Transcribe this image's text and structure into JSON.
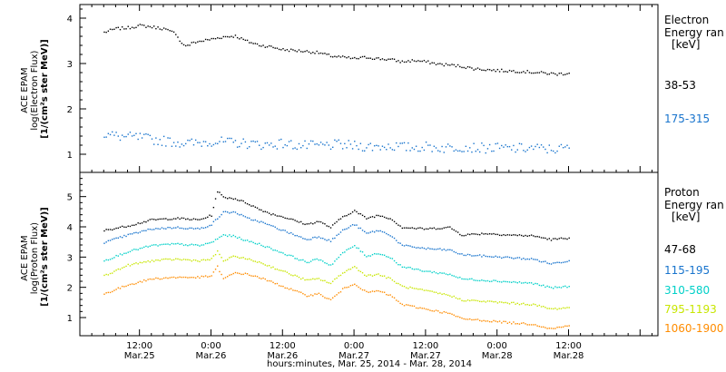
{
  "chart_data": [
    {
      "type": "scatter",
      "panel": "electron",
      "ylabel_lines": [
        "ACE EPAM",
        "log(Electron Flux)",
        "[1/(cm²s ster MeV)]"
      ],
      "legend_title": "Electron",
      "legend_subtitle": "Energy ran",
      "legend_units": "[keV]",
      "ylim": [
        0.6,
        4.3
      ],
      "yticks": [
        "1",
        "2",
        "3",
        "4"
      ],
      "series": [
        {
          "name": "38-53",
          "color": "#000000",
          "points": [
            [
              0.0,
              3.7
            ],
            [
              2.0,
              3.78
            ],
            [
              4.0,
              3.8
            ],
            [
              6.0,
              3.85
            ],
            [
              8.0,
              3.82
            ],
            [
              10.0,
              3.78
            ],
            [
              11.0,
              3.72
            ],
            [
              12.0,
              3.68
            ],
            [
              13.0,
              3.45
            ],
            [
              14.0,
              3.4
            ],
            [
              15.0,
              3.48
            ],
            [
              16.0,
              3.5
            ],
            [
              18.0,
              3.55
            ],
            [
              20.0,
              3.6
            ],
            [
              22.0,
              3.62
            ],
            [
              24.0,
              3.5
            ],
            [
              26.0,
              3.42
            ],
            [
              28.0,
              3.38
            ],
            [
              30.0,
              3.32
            ],
            [
              32.0,
              3.3
            ],
            [
              34.0,
              3.28
            ],
            [
              36.0,
              3.25
            ],
            [
              38.0,
              3.18
            ],
            [
              40.0,
              3.15
            ],
            [
              42.0,
              3.12
            ],
            [
              44.0,
              3.15
            ],
            [
              46.0,
              3.12
            ],
            [
              48.0,
              3.1
            ],
            [
              50.0,
              3.05
            ],
            [
              52.0,
              3.08
            ],
            [
              54.0,
              3.05
            ],
            [
              56.0,
              3.0
            ],
            [
              58.0,
              2.98
            ],
            [
              60.0,
              2.95
            ],
            [
              62.0,
              2.9
            ],
            [
              64.0,
              2.88
            ],
            [
              66.0,
              2.86
            ],
            [
              68.0,
              2.85
            ],
            [
              70.0,
              2.84
            ],
            [
              72.0,
              2.82
            ],
            [
              74.0,
              2.8
            ],
            [
              76.0,
              2.78
            ],
            [
              78.0,
              2.8
            ]
          ]
        },
        {
          "name": "175-315",
          "color": "#1874cd",
          "points": [
            [
              0.0,
              1.45
            ],
            [
              3.0,
              1.4
            ],
            [
              6.0,
              1.38
            ],
            [
              9.0,
              1.32
            ],
            [
              12.0,
              1.28
            ],
            [
              15.0,
              1.25
            ],
            [
              18.0,
              1.3
            ],
            [
              21.0,
              1.27
            ],
            [
              24.0,
              1.25
            ],
            [
              27.0,
              1.22
            ],
            [
              30.0,
              1.25
            ],
            [
              33.0,
              1.2
            ],
            [
              36.0,
              1.2
            ],
            [
              39.0,
              1.22
            ],
            [
              42.0,
              1.2
            ],
            [
              45.0,
              1.18
            ],
            [
              48.0,
              1.2
            ],
            [
              51.0,
              1.16
            ],
            [
              54.0,
              1.18
            ],
            [
              57.0,
              1.15
            ],
            [
              60.0,
              1.18
            ],
            [
              63.0,
              1.15
            ],
            [
              66.0,
              1.15
            ],
            [
              69.0,
              1.14
            ],
            [
              72.0,
              1.15
            ],
            [
              75.0,
              1.12
            ],
            [
              78.0,
              1.15
            ]
          ]
        }
      ]
    },
    {
      "type": "scatter",
      "panel": "proton",
      "ylabel_lines": [
        "ACE EPAM",
        "log(Proton Flux)",
        "[1/(cm²s ster MeV)]"
      ],
      "legend_title": "Proton",
      "legend_subtitle": "Energy ran",
      "legend_units": "[keV]",
      "ylim": [
        0.4,
        5.8
      ],
      "yticks": [
        "1",
        "2",
        "3",
        "4",
        "5"
      ],
      "series": [
        {
          "name": "47-68",
          "color": "#000000",
          "points": [
            [
              0,
              3.9
            ],
            [
              4,
              4.05
            ],
            [
              8,
              4.25
            ],
            [
              12,
              4.3
            ],
            [
              16,
              4.25
            ],
            [
              18,
              4.4
            ],
            [
              19,
              5.2
            ],
            [
              20,
              5.0
            ],
            [
              22,
              4.95
            ],
            [
              24,
              4.8
            ],
            [
              26,
              4.6
            ],
            [
              28,
              4.45
            ],
            [
              30,
              4.35
            ],
            [
              34,
              4.1
            ],
            [
              36,
              4.2
            ],
            [
              38,
              4.0
            ],
            [
              40,
              4.35
            ],
            [
              42,
              4.55
            ],
            [
              44,
              4.3
            ],
            [
              46,
              4.4
            ],
            [
              48,
              4.3
            ],
            [
              50,
              4.0
            ],
            [
              54,
              3.95
            ],
            [
              58,
              4.0
            ],
            [
              60,
              3.75
            ],
            [
              64,
              3.8
            ],
            [
              68,
              3.75
            ],
            [
              72,
              3.72
            ],
            [
              75,
              3.6
            ],
            [
              78,
              3.65
            ]
          ]
        },
        {
          "name": "115-195",
          "color": "#1874cd",
          "points": [
            [
              0,
              3.5
            ],
            [
              4,
              3.75
            ],
            [
              8,
              3.95
            ],
            [
              12,
              4.0
            ],
            [
              16,
              3.95
            ],
            [
              18,
              4.1
            ],
            [
              20,
              4.5
            ],
            [
              22,
              4.5
            ],
            [
              24,
              4.3
            ],
            [
              26,
              4.2
            ],
            [
              28,
              4.05
            ],
            [
              30,
              3.9
            ],
            [
              34,
              3.6
            ],
            [
              36,
              3.7
            ],
            [
              38,
              3.55
            ],
            [
              40,
              3.9
            ],
            [
              42,
              4.1
            ],
            [
              44,
              3.8
            ],
            [
              46,
              3.9
            ],
            [
              48,
              3.75
            ],
            [
              50,
              3.4
            ],
            [
              54,
              3.3
            ],
            [
              58,
              3.25
            ],
            [
              60,
              3.1
            ],
            [
              64,
              3.05
            ],
            [
              68,
              3.0
            ],
            [
              72,
              2.95
            ],
            [
              75,
              2.8
            ],
            [
              78,
              2.9
            ]
          ]
        },
        {
          "name": "310-580",
          "color": "#00d0c8",
          "points": [
            [
              0,
              2.9
            ],
            [
              4,
              3.2
            ],
            [
              8,
              3.4
            ],
            [
              12,
              3.45
            ],
            [
              16,
              3.4
            ],
            [
              18,
              3.5
            ],
            [
              20,
              3.75
            ],
            [
              22,
              3.7
            ],
            [
              24,
              3.55
            ],
            [
              26,
              3.45
            ],
            [
              28,
              3.3
            ],
            [
              30,
              3.15
            ],
            [
              34,
              2.85
            ],
            [
              36,
              2.95
            ],
            [
              38,
              2.75
            ],
            [
              40,
              3.15
            ],
            [
              42,
              3.4
            ],
            [
              44,
              3.05
            ],
            [
              46,
              3.15
            ],
            [
              48,
              3.0
            ],
            [
              50,
              2.7
            ],
            [
              54,
              2.55
            ],
            [
              58,
              2.45
            ],
            [
              60,
              2.3
            ],
            [
              64,
              2.25
            ],
            [
              68,
              2.2
            ],
            [
              72,
              2.15
            ],
            [
              75,
              2.0
            ],
            [
              78,
              2.05
            ]
          ]
        },
        {
          "name": "795-1193",
          "color": "#c8e600",
          "points": [
            [
              0,
              2.4
            ],
            [
              4,
              2.75
            ],
            [
              8,
              2.9
            ],
            [
              12,
              2.95
            ],
            [
              16,
              2.9
            ],
            [
              18,
              2.95
            ],
            [
              19,
              3.2
            ],
            [
              20,
              2.9
            ],
            [
              22,
              3.05
            ],
            [
              24,
              2.95
            ],
            [
              26,
              2.85
            ],
            [
              28,
              2.7
            ],
            [
              30,
              2.55
            ],
            [
              34,
              2.25
            ],
            [
              36,
              2.3
            ],
            [
              38,
              2.15
            ],
            [
              40,
              2.5
            ],
            [
              42,
              2.7
            ],
            [
              44,
              2.4
            ],
            [
              46,
              2.45
            ],
            [
              48,
              2.3
            ],
            [
              50,
              2.05
            ],
            [
              54,
              1.9
            ],
            [
              58,
              1.75
            ],
            [
              60,
              1.6
            ],
            [
              64,
              1.55
            ],
            [
              68,
              1.5
            ],
            [
              72,
              1.45
            ],
            [
              75,
              1.3
            ],
            [
              78,
              1.35
            ]
          ]
        },
        {
          "name": "1060-1900",
          "color": "#ff8c00",
          "points": [
            [
              0,
              1.8
            ],
            [
              4,
              2.1
            ],
            [
              8,
              2.3
            ],
            [
              12,
              2.35
            ],
            [
              16,
              2.35
            ],
            [
              18,
              2.4
            ],
            [
              19,
              2.7
            ],
            [
              20,
              2.3
            ],
            [
              22,
              2.5
            ],
            [
              24,
              2.45
            ],
            [
              26,
              2.35
            ],
            [
              28,
              2.2
            ],
            [
              30,
              2.05
            ],
            [
              34,
              1.75
            ],
            [
              36,
              1.8
            ],
            [
              38,
              1.6
            ],
            [
              40,
              1.95
            ],
            [
              42,
              2.15
            ],
            [
              44,
              1.85
            ],
            [
              46,
              1.9
            ],
            [
              48,
              1.75
            ],
            [
              50,
              1.45
            ],
            [
              54,
              1.3
            ],
            [
              58,
              1.15
            ],
            [
              60,
              0.98
            ],
            [
              64,
              0.92
            ],
            [
              68,
              0.85
            ],
            [
              72,
              0.8
            ],
            [
              75,
              0.65
            ],
            [
              78,
              0.75
            ]
          ]
        }
      ]
    }
  ],
  "x_axis": {
    "xlim": [
      -4.0,
      93.0
    ],
    "xtick_hours": [
      6,
      18,
      30,
      42,
      54,
      66,
      78,
      90
    ],
    "major_ticks": [
      {
        "hour": 6,
        "time": "12:00",
        "date": "Mar.25"
      },
      {
        "hour": 18,
        "time": "0:00",
        "date": "Mar.26"
      },
      {
        "hour": 30,
        "time": "12:00",
        "date": "Mar.26"
      },
      {
        "hour": 42,
        "time": "0:00",
        "date": "Mar.27"
      },
      {
        "hour": 54,
        "time": "12:00",
        "date": "Mar.27"
      },
      {
        "hour": 66,
        "time": "0:00",
        "date": "Mar.28"
      },
      {
        "hour": 78,
        "time": "12:00",
        "date": "Mar.28"
      }
    ],
    "xlabel": "hours:minutes, Mar. 25, 2014 - Mar. 28, 2014"
  }
}
